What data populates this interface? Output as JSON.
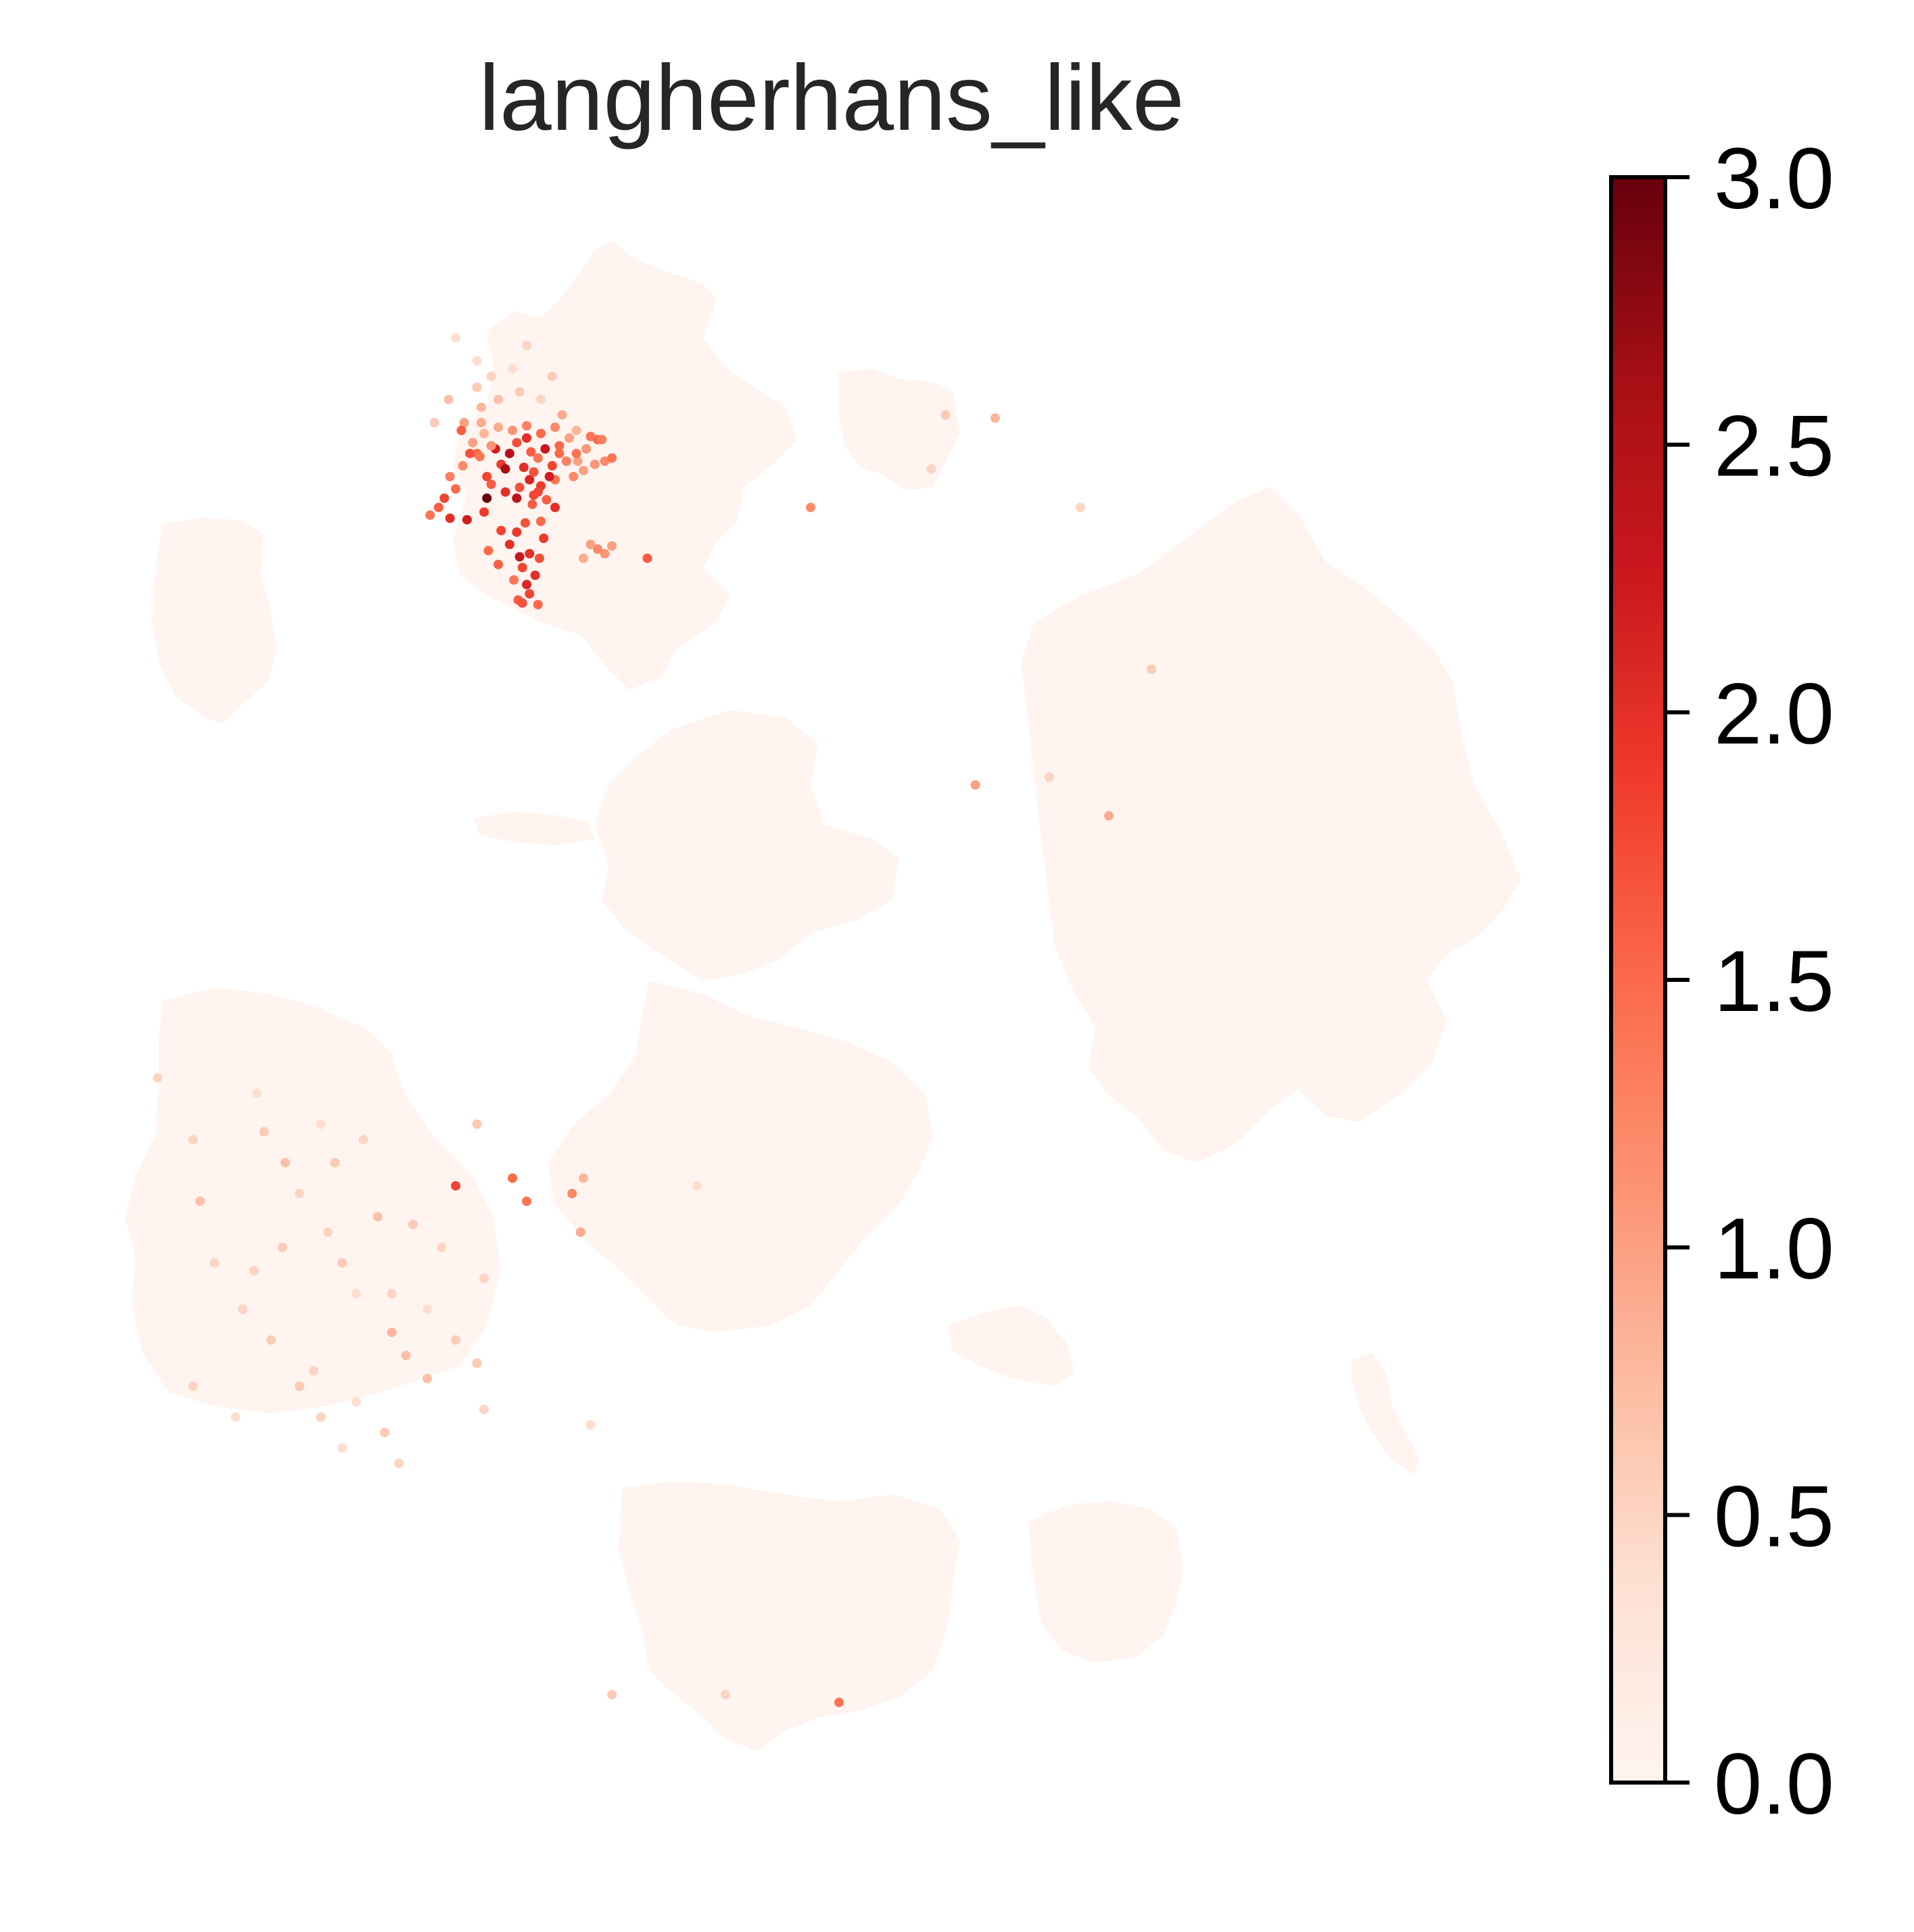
{
  "chart_data": {
    "type": "scatter",
    "title": "langherhans_like",
    "xlabel": "",
    "ylabel": "",
    "axes_visible": false,
    "grid": false,
    "colorbar": {
      "colormap": "Reds",
      "range": [
        0.0,
        3.0
      ],
      "ticks": [
        0.0,
        0.5,
        1.0,
        1.5,
        2.0,
        2.5,
        3.0
      ],
      "tick_labels": [
        "0.0",
        "0.5",
        "1.0",
        "1.5",
        "2.0",
        "2.5",
        "3.0"
      ],
      "placement": "right",
      "colors": [
        "#fff5f0",
        "#fee0d2",
        "#fcbba1",
        "#fc9272",
        "#fb6a4a",
        "#ef3b2c",
        "#cb181d",
        "#a50f15",
        "#67000d"
      ]
    },
    "background_clusters": {
      "value": 0.0,
      "names": [
        "top-left-cluster",
        "top-right-small-cluster",
        "left-small-cluster",
        "center-cluster",
        "right-large-cluster",
        "lower-left-cluster",
        "lower-center-cluster",
        "bottom-cluster",
        "bottom-right-cluster",
        "far-right-sliver",
        "lower-right-small-cluster",
        "mid-strip"
      ]
    },
    "series": [
      {
        "points": [
          [
            0.245,
            0.847,
            1.2
          ],
          [
            0.255,
            0.855,
            1.5
          ],
          [
            0.262,
            0.84,
            1.8
          ],
          [
            0.268,
            0.858,
            2.2
          ],
          [
            0.252,
            0.862,
            1.0
          ],
          [
            0.272,
            0.848,
            1.9
          ],
          [
            0.278,
            0.855,
            2.5
          ],
          [
            0.283,
            0.862,
            1.7
          ],
          [
            0.288,
            0.846,
            2.0
          ],
          [
            0.293,
            0.856,
            1.6
          ],
          [
            0.298,
            0.852,
            1.4
          ],
          [
            0.303,
            0.858,
            2.3
          ],
          [
            0.308,
            0.847,
            1.8
          ],
          [
            0.313,
            0.855,
            1.5
          ],
          [
            0.318,
            0.85,
            1.3
          ],
          [
            0.265,
            0.835,
            1.6
          ],
          [
            0.275,
            0.83,
            2.0
          ],
          [
            0.285,
            0.833,
            1.7
          ],
          [
            0.292,
            0.838,
            2.1
          ],
          [
            0.3,
            0.834,
            1.9
          ],
          [
            0.31,
            0.838,
            1.4
          ],
          [
            0.28,
            0.87,
            1.1
          ],
          [
            0.29,
            0.873,
            1.3
          ],
          [
            0.3,
            0.868,
            1.5
          ],
          [
            0.27,
            0.872,
            0.9
          ],
          [
            0.26,
            0.868,
            0.8
          ],
          [
            0.31,
            0.872,
            1.2
          ],
          [
            0.32,
            0.865,
            1.0
          ],
          [
            0.283,
            0.826,
            2.4
          ],
          [
            0.295,
            0.828,
            1.8
          ],
          [
            0.24,
            0.832,
            1.5
          ],
          [
            0.232,
            0.826,
            1.8
          ],
          [
            0.228,
            0.82,
            1.6
          ],
          [
            0.236,
            0.813,
            2.0
          ],
          [
            0.222,
            0.815,
            1.4
          ],
          [
            0.248,
            0.812,
            2.2
          ],
          [
            0.236,
            0.84,
            1.3
          ],
          [
            0.246,
            0.875,
            1.0
          ],
          [
            0.258,
            0.885,
            0.8
          ],
          [
            0.27,
            0.89,
            0.7
          ],
          [
            0.255,
            0.898,
            0.6
          ],
          [
            0.285,
            0.895,
            0.6
          ],
          [
            0.235,
            0.89,
            0.7
          ],
          [
            0.225,
            0.875,
            0.6
          ],
          [
            0.244,
            0.87,
            1.6
          ],
          [
            0.258,
            0.875,
            0.9
          ],
          [
            0.3,
            0.89,
            0.5
          ],
          [
            0.315,
            0.88,
            0.9
          ],
          [
            0.325,
            0.87,
            0.8
          ],
          [
            0.335,
            0.866,
            1.4
          ],
          [
            0.34,
            0.864,
            1.5
          ],
          [
            0.343,
            0.864,
            1.3
          ],
          [
            0.332,
            0.858,
            1.1
          ],
          [
            0.326,
            0.85,
            1.0
          ],
          [
            0.26,
            0.817,
            1.9
          ],
          [
            0.272,
            0.805,
            1.8
          ],
          [
            0.278,
            0.796,
            2.0
          ],
          [
            0.285,
            0.788,
            2.3
          ],
          [
            0.292,
            0.79,
            2.0
          ],
          [
            0.287,
            0.781,
            1.8
          ],
          [
            0.281,
            0.773,
            1.4
          ],
          [
            0.29,
            0.77,
            2.1
          ],
          [
            0.284,
            0.76,
            1.6
          ],
          [
            0.292,
            0.764,
            1.8
          ],
          [
            0.296,
            0.776,
            2.0
          ],
          [
            0.299,
            0.787,
            1.7
          ],
          [
            0.302,
            0.8,
            1.9
          ],
          [
            0.3,
            0.811,
            1.5
          ],
          [
            0.263,
            0.792,
            1.5
          ],
          [
            0.27,
            0.783,
            1.6
          ],
          [
            0.283,
            0.804,
            1.9
          ],
          [
            0.289,
            0.81,
            1.7
          ],
          [
            0.294,
            0.822,
            1.6
          ],
          [
            0.298,
            0.83,
            1.8
          ],
          [
            0.304,
            0.825,
            1.6
          ],
          [
            0.306,
            0.84,
            2.2
          ],
          [
            0.323,
            0.84,
            1.2
          ],
          [
            0.33,
            0.844,
            1.0
          ],
          [
            0.338,
            0.848,
            1.1
          ],
          [
            0.345,
            0.85,
            1.2
          ],
          [
            0.35,
            0.852,
            1.4
          ],
          [
            0.34,
            0.793,
            1.2
          ],
          [
            0.335,
            0.796,
            1.0
          ],
          [
            0.345,
            0.79,
            1.1
          ],
          [
            0.33,
            0.787,
            0.9
          ],
          [
            0.35,
            0.795,
            1.0
          ],
          [
            0.375,
            0.787,
            1.6
          ],
          [
            0.29,
            0.925,
            0.5
          ],
          [
            0.24,
            0.93,
            0.4
          ],
          [
            0.265,
            0.905,
            0.5
          ],
          [
            0.308,
            0.905,
            0.6
          ],
          [
            0.28,
            0.91,
            0.4
          ],
          [
            0.255,
            0.915,
            0.4
          ],
          [
            0.25,
            0.855,
            1.7
          ],
          [
            0.257,
            0.853,
            1.4
          ],
          [
            0.265,
            0.86,
            1.1
          ],
          [
            0.275,
            0.845,
            2.6
          ],
          [
            0.31,
            0.82,
            2.0
          ],
          [
            0.262,
            0.826,
            3.0
          ],
          [
            0.29,
            0.865,
            2.0
          ],
          [
            0.295,
            0.843,
            1.7
          ],
          [
            0.325,
            0.855,
            1.4
          ],
          [
            0.313,
            0.86,
            1.5
          ],
          [
            0.287,
            0.758,
            1.7
          ],
          [
            0.298,
            0.757,
            1.5
          ]
        ]
      },
      {
        "points": [
          [
            0.24,
            0.38,
            1.8
          ],
          [
            0.28,
            0.385,
            1.5
          ],
          [
            0.29,
            0.37,
            1.4
          ],
          [
            0.322,
            0.375,
            1.2
          ],
          [
            0.33,
            0.385,
            0.8
          ],
          [
            0.255,
            0.42,
            0.6
          ],
          [
            0.328,
            0.35,
            0.9
          ],
          [
            0.41,
            0.38,
            0.4
          ],
          [
            0.335,
            0.225,
            0.4
          ],
          [
            0.51,
            0.045,
            1.4
          ],
          [
            0.43,
            0.05,
            0.5
          ],
          [
            0.35,
            0.05,
            0.6
          ],
          [
            0.585,
            0.88,
            0.6
          ],
          [
            0.62,
            0.878,
            0.8
          ],
          [
            0.73,
            0.715,
            0.6
          ],
          [
            0.658,
            0.645,
            0.5
          ],
          [
            0.575,
            0.845,
            0.5
          ],
          [
            0.68,
            0.82,
            0.5
          ],
          [
            0.606,
            0.64,
            1.0
          ],
          [
            0.7,
            0.62,
            0.9
          ],
          [
            0.49,
            0.82,
            1.2
          ],
          [
            0.03,
            0.45,
            0.5
          ],
          [
            0.06,
            0.37,
            0.7
          ],
          [
            0.07,
            0.33,
            0.5
          ],
          [
            0.1,
            0.44,
            0.4
          ],
          [
            0.105,
            0.415,
            0.6
          ],
          [
            0.12,
            0.395,
            0.7
          ],
          [
            0.13,
            0.375,
            0.5
          ],
          [
            0.15,
            0.35,
            0.5
          ],
          [
            0.16,
            0.33,
            0.6
          ],
          [
            0.17,
            0.31,
            0.4
          ],
          [
            0.09,
            0.3,
            0.5
          ],
          [
            0.11,
            0.28,
            0.6
          ],
          [
            0.14,
            0.26,
            0.5
          ],
          [
            0.17,
            0.24,
            0.4
          ],
          [
            0.19,
            0.22,
            0.6
          ],
          [
            0.2,
            0.2,
            0.5
          ],
          [
            0.22,
            0.3,
            0.4
          ],
          [
            0.24,
            0.28,
            0.6
          ],
          [
            0.26,
            0.32,
            0.5
          ],
          [
            0.23,
            0.34,
            0.5
          ],
          [
            0.185,
            0.36,
            0.7
          ],
          [
            0.21,
            0.355,
            0.6
          ],
          [
            0.195,
            0.285,
            0.8
          ],
          [
            0.205,
            0.27,
            0.7
          ],
          [
            0.155,
            0.395,
            0.6
          ],
          [
            0.175,
            0.41,
            0.5
          ],
          [
            0.145,
            0.42,
            0.4
          ],
          [
            0.22,
            0.255,
            0.7
          ],
          [
            0.255,
            0.265,
            0.6
          ],
          [
            0.26,
            0.235,
            0.5
          ],
          [
            0.118,
            0.34,
            0.6
          ],
          [
            0.098,
            0.325,
            0.5
          ],
          [
            0.055,
            0.41,
            0.5
          ],
          [
            0.055,
            0.25,
            0.5
          ],
          [
            0.085,
            0.23,
            0.4
          ],
          [
            0.13,
            0.25,
            0.6
          ],
          [
            0.145,
            0.23,
            0.5
          ],
          [
            0.16,
            0.21,
            0.4
          ],
          [
            0.195,
            0.31,
            0.5
          ]
        ]
      }
    ]
  }
}
